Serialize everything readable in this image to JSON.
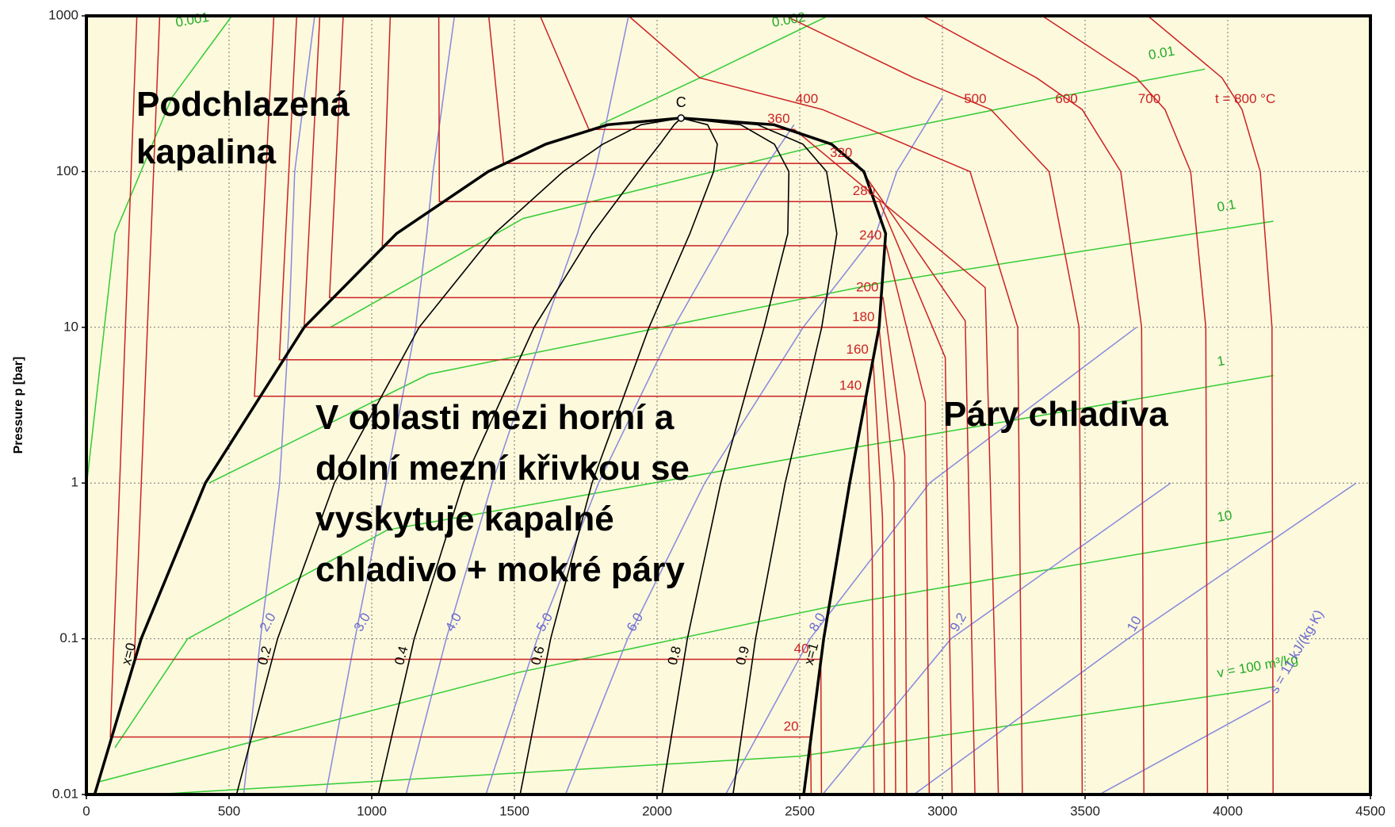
{
  "chart_data": {
    "type": "line",
    "ylabel": "Pressure p [bar]",
    "xlim": [
      0,
      4500
    ],
    "xticks": [
      0,
      500,
      1000,
      1500,
      2000,
      2500,
      3000,
      3500,
      4000,
      4500
    ],
    "ylim": [
      0.01,
      1000
    ],
    "yticks": [
      0.01,
      0.1,
      1,
      10,
      100,
      1000
    ],
    "yscale": "log",
    "grid": true,
    "critical_label": "C",
    "annotations": [
      [
        "Podchlazená",
        "kapalina"
      ],
      [
        "V oblasti mezi horní a",
        "dolní  mezní křivkou se",
        "vyskytuje kapalné",
        "chladivo + mokré páry"
      ],
      [
        "Páry chladiva"
      ]
    ],
    "curves": {
      "isochores": {
        "color": "#33cc33",
        "series": [
          {
            "name": "0.001",
            "x": [
              0,
              100,
              300,
              510
            ],
            "values": [
              0.95,
              40,
              300,
              1000
            ]
          },
          {
            "name": "0.002",
            "x": [
              1800,
              2150,
              2600
            ],
            "values": [
              200,
              400,
              1000
            ]
          },
          {
            "name": "0.01",
            "x": [
              855,
              1531,
              2600,
              3400,
              3920
            ],
            "values": [
              10,
              50,
              152,
              300,
              455
            ]
          },
          {
            "name": "0.1",
            "x": [
              430,
              1200,
              2800,
              4160
            ],
            "values": [
              1,
              5,
              19.5,
              48
            ]
          },
          {
            "name": "1",
            "x": [
              100,
              355,
              1055,
              2700,
              4160
            ],
            "values": [
              0.02,
              0.1,
              0.5,
              1.7,
              4.9
            ]
          },
          {
            "name": "10",
            "x": [
              40,
              1500,
              2600,
              4160
            ],
            "values": [
              0.012,
              0.06,
              0.16,
              0.49
            ]
          },
          {
            "name": "v = 100 m³/kg",
            "x": [
              234,
              2500,
              4160
            ],
            "values": [
              0.01,
              0.0176,
              0.049
            ]
          }
        ]
      },
      "isentropes": {
        "color": "#8888dd",
        "series": [
          {
            "name": "2.0",
            "x": [
              551,
              610,
              677,
              710,
              730,
              800
            ],
            "values": [
              0.01,
              0.1,
              1,
              10,
              100,
              1000
            ]
          },
          {
            "name": "3.0",
            "x": [
              839,
              941,
              1050,
              1154,
              1193,
              1215,
              1290
            ],
            "values": [
              0.01,
              0.1,
              1,
              10,
              40,
              100,
              1000
            ]
          },
          {
            "name": "4.0",
            "x": [
              1120,
              1261,
              1422,
              1605,
              1721,
              1782,
              1820,
              1900
            ],
            "values": [
              0.01,
              0.1,
              1,
              10,
              40,
              100,
              200,
              1000
            ]
          },
          {
            "name": "5.0",
            "x": [
              1400,
              1580,
              1795,
              2058,
              2368,
              2480
            ],
            "values": [
              0.01,
              0.1,
              1,
              10,
              100,
              200
            ]
          },
          {
            "name": "6.0",
            "x": [
              1679,
              1897,
              2167,
              2512,
              2767,
              2840,
              3000
            ],
            "values": [
              0.01,
              0.1,
              1,
              10,
              40,
              100,
              300
            ]
          },
          {
            "name": "8.0",
            "x": [
              2240,
              2536,
              2955,
              3680
            ],
            "values": [
              0.01,
              0.1,
              1,
              10
            ]
          },
          {
            "name": "9.2",
            "x": [
              2580,
              3030,
              3800
            ],
            "values": [
              0.01,
              0.1,
              1
            ]
          },
          {
            "name": "10",
            "x": [
              2900,
              3650,
              4450
            ],
            "values": [
              0.01,
              0.1,
              1
            ]
          },
          {
            "name": "s = 11 kJ/(kg·K)",
            "x": [
              3550,
              4150
            ],
            "values": [
              0.01,
              0.04
            ]
          }
        ]
      },
      "isotherms": {
        "color": "#cc2222",
        "series": [
          {
            "name": "20",
            "x": [
              177,
              84,
              2538,
              2540
            ],
            "values": [
              1000,
              0.0234,
              0.0234,
              0.01
            ]
          },
          {
            "name": "40",
            "x": [
              257,
              168,
              2574,
              2576
            ],
            "values": [
              1000,
              0.0738,
              0.0738,
              0.01
            ]
          },
          {
            "name": "140",
            "x": [
              657,
              589,
              2733,
              2754,
              2760
            ],
            "values": [
              1000,
              3.61,
              3.61,
              0.36,
              0.01
            ]
          },
          {
            "name": "160",
            "x": [
              737,
              676,
              2757,
              2790,
              2797
            ],
            "values": [
              1000,
              6.18,
              6.18,
              0.6,
              0.01
            ]
          },
          {
            "name": "180",
            "x": [
              818,
              763,
              2778,
              2830,
              2836
            ],
            "values": [
              1000,
              10,
              10,
              1,
              0.01
            ]
          },
          {
            "name": "200",
            "x": [
              900,
              852,
              2792,
              2868,
              2875
            ],
            "values": [
              1000,
              15.5,
              15.5,
              1.5,
              0.01
            ]
          },
          {
            "name": "240",
            "x": [
              1065,
              1037,
              2803,
              2940,
              2954
            ],
            "values": [
              1000,
              33.4,
              33.4,
              3.3,
              0.01
            ]
          },
          {
            "name": "280",
            "x": [
              1235,
              1237,
              2780,
              3010,
              3034
            ],
            "values": [
              1000,
              64.2,
              64.2,
              6.4,
              0.01
            ]
          },
          {
            "name": "320",
            "x": [
              1410,
              1462,
              2700,
              3080,
              3114
            ],
            "values": [
              1000,
              112.8,
              112.8,
              11,
              0.01
            ]
          },
          {
            "name": "360",
            "x": [
              1590,
              1761,
              2481,
              3150,
              3196
            ],
            "values": [
              1000,
              186.5,
              186.5,
              18,
              0.01
            ]
          },
          {
            "name": "400",
            "x": [
              1900,
              2150,
              2580,
              3097,
              3264,
              3280
            ],
            "values": [
              1000,
              400,
              250,
              100,
              10,
              0.01
            ]
          },
          {
            "name": "500",
            "x": [
              2450,
              2900,
              3170,
              3374,
              3479,
              3490
            ],
            "values": [
              1000,
              400,
              250,
              100,
              10,
              0.01
            ]
          },
          {
            "name": "600",
            "x": [
              2930,
              3330,
              3490,
              3625,
              3698,
              3706
            ],
            "values": [
              1000,
              400,
              250,
              100,
              10,
              0.01
            ]
          },
          {
            "name": "700",
            "x": [
              3350,
              3680,
              3780,
              3870,
              3923,
              3929
            ],
            "values": [
              1000,
              400,
              250,
              100,
              10,
              0.01
            ]
          },
          {
            "name": "t = 800 °C",
            "x": [
              3720,
              3980,
              4050,
              4114,
              4155,
              4159
            ],
            "values": [
              1000,
              400,
              250,
              100,
              10,
              0.01
            ]
          }
        ]
      },
      "quality": {
        "color": "#000000",
        "series": [
          {
            "name": "x=0",
            "x": [
              29,
              192,
              417,
              763,
              1087,
              1408,
              1610,
              1827,
              2084
            ],
            "values": [
              0.01,
              0.1,
              1,
              10,
              40,
              100,
              150,
              200,
              220.6
            ]
          },
          {
            "name": "0.2",
            "x": [
              526,
              670,
              869,
              1166,
              1430,
              1671,
              1810,
              1944,
              2084
            ],
            "values": [
              0.01,
              0.1,
              1,
              10,
              40,
              100,
              150,
              200,
              220.6
            ]
          },
          {
            "name": "0.4",
            "x": [
              1023,
              1149,
              1320,
              1569,
              1773,
              1935,
              2010,
              2060,
              2084
            ],
            "values": [
              0.01,
              0.1,
              1,
              10,
              40,
              100,
              150,
              200,
              220.6
            ]
          },
          {
            "name": "0.6",
            "x": [
              1520,
              1627,
              1772,
              1972,
              2115,
              2198,
              2211,
              2177,
              2084
            ],
            "values": [
              0.01,
              0.1,
              1,
              10,
              40,
              100,
              150,
              200,
              220.6
            ]
          },
          {
            "name": "0.8",
            "x": [
              2017,
              2106,
              2223,
              2375,
              2458,
              2462,
              2411,
              2293,
              2084
            ],
            "values": [
              0.01,
              0.1,
              1,
              10,
              40,
              100,
              150,
              200,
              220.6
            ]
          },
          {
            "name": "0.9",
            "x": [
              2266,
              2345,
              2449,
              2577,
              2630,
              2594,
              2511,
              2352,
              2084
            ],
            "values": [
              0.01,
              0.1,
              1,
              10,
              40,
              100,
              150,
              200,
              220.6
            ]
          },
          {
            "name": "x=1",
            "x": [
              2514,
              2584,
              2675,
              2778,
              2801,
              2725,
              2611,
              2410,
              2084
            ],
            "values": [
              0.01,
              0.1,
              1,
              10,
              40,
              100,
              150,
              200,
              220.6
            ]
          }
        ]
      }
    }
  }
}
